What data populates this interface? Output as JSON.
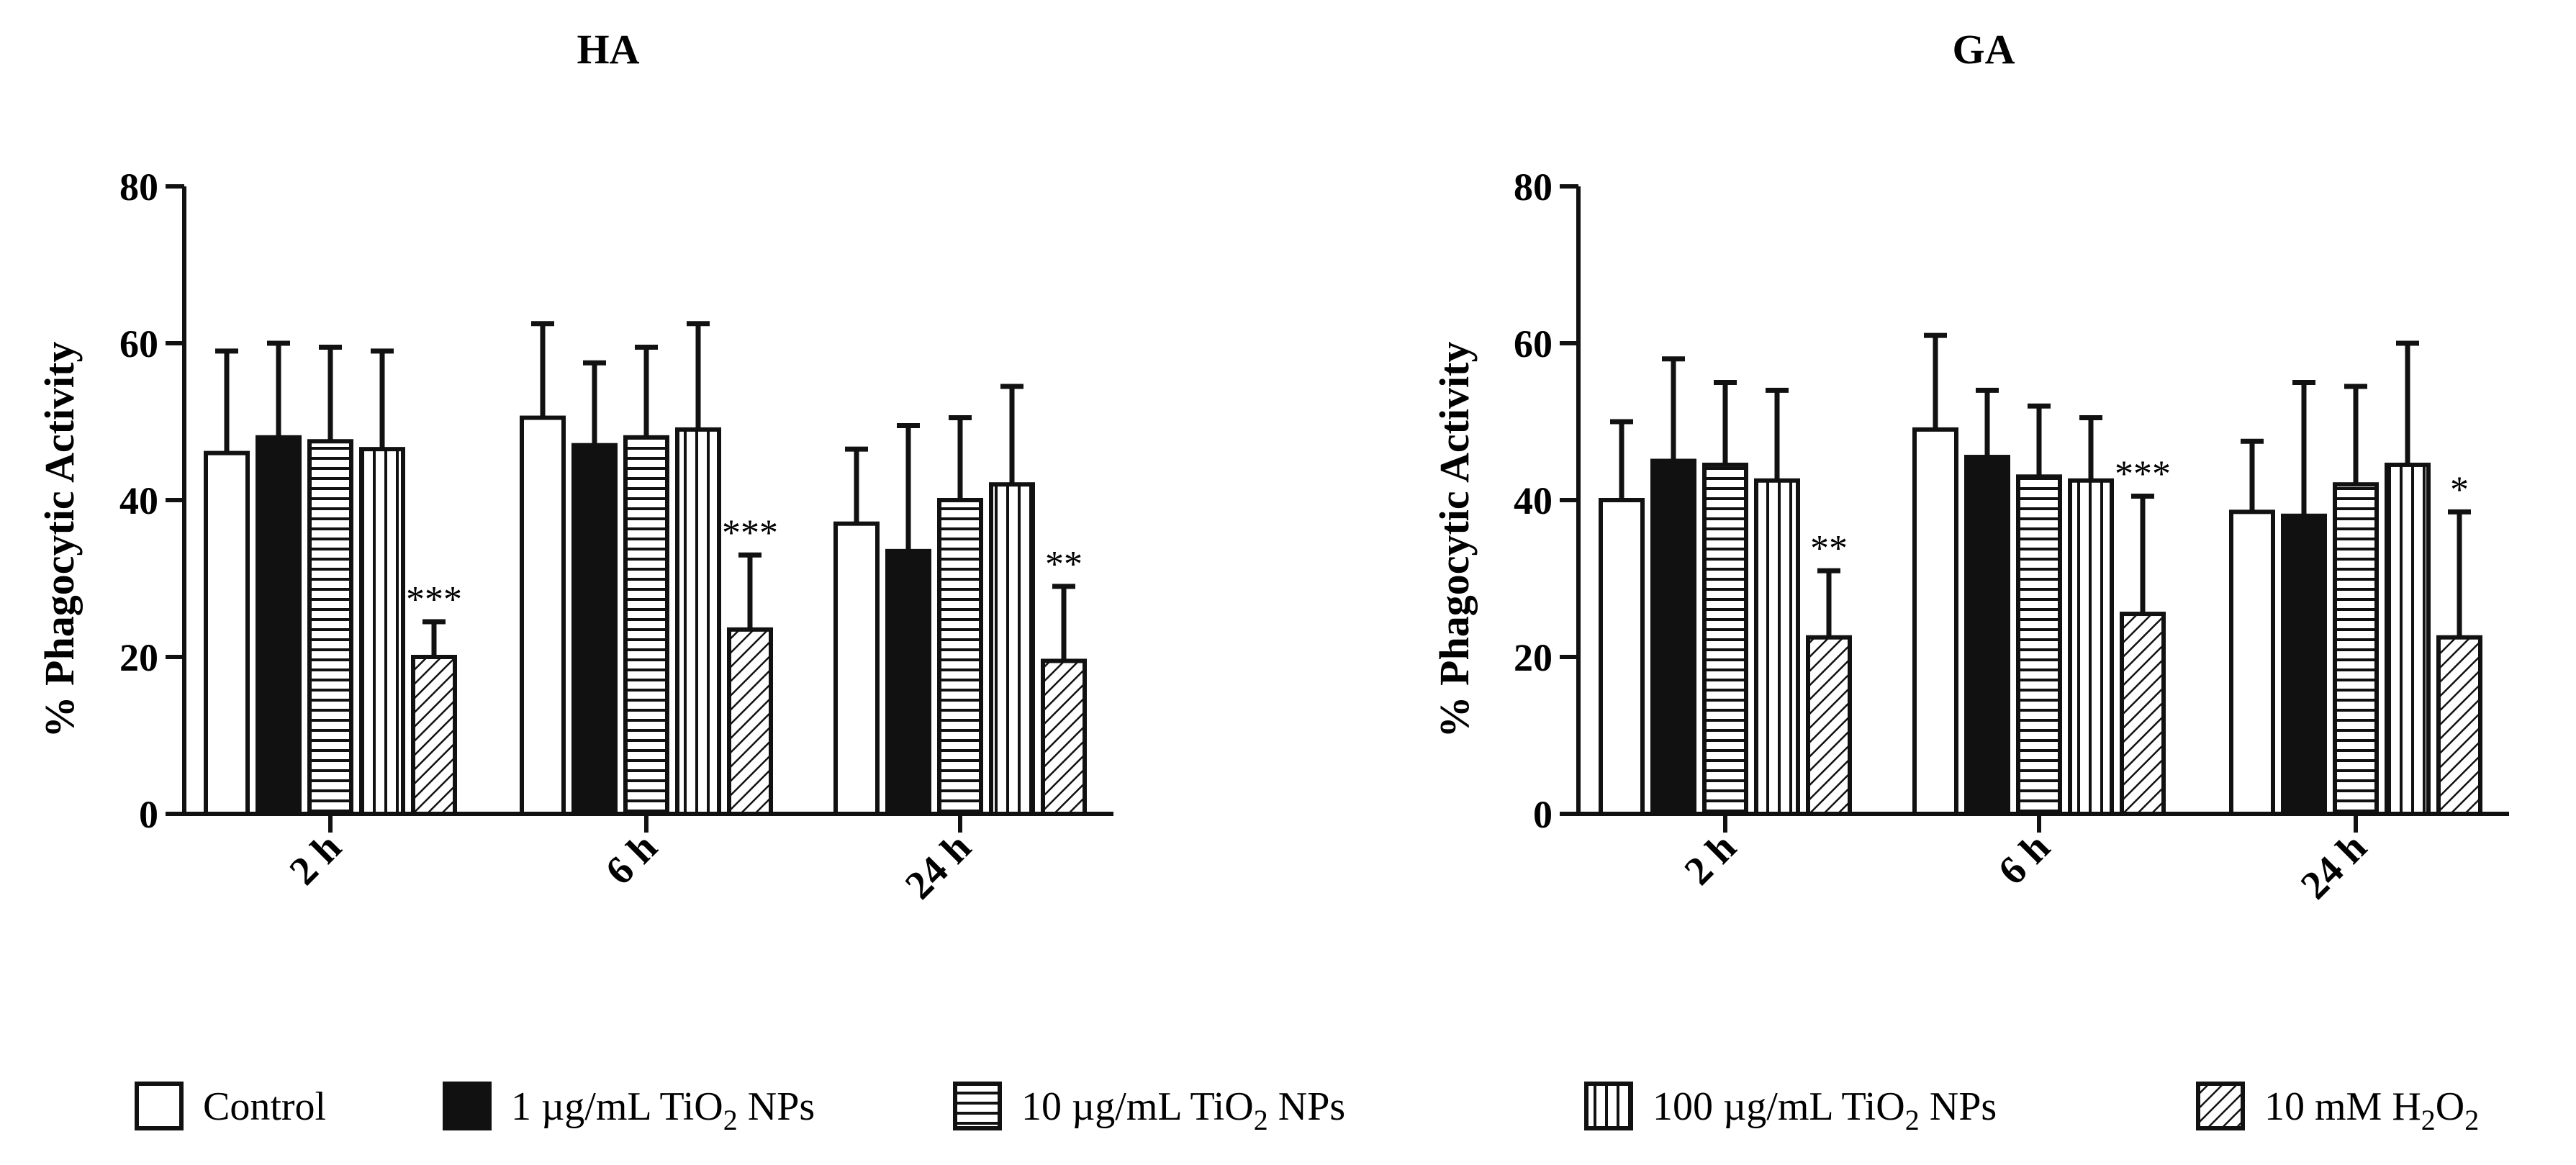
{
  "chart_data": [
    {
      "type": "bar",
      "title": "HA",
      "ylabel": "% Phagocytic Activity",
      "xlabel": "",
      "ylim": [
        0,
        80
      ],
      "yticks": [
        "0",
        "20",
        "40",
        "60",
        "80"
      ],
      "grid": false,
      "categories": [
        "2 h",
        "6 h",
        "24 h"
      ],
      "series": [
        {
          "name": "Control",
          "values": [
            46,
            50.5,
            37
          ],
          "errors": [
            13,
            12,
            9.5
          ]
        },
        {
          "name": "1 µg/mL TiO2 NPs",
          "values": [
            48,
            47,
            33.5
          ],
          "errors": [
            12,
            10.5,
            16
          ]
        },
        {
          "name": "10 µg/mL TiO2 NPs",
          "values": [
            47.5,
            48,
            40
          ],
          "errors": [
            12,
            11.5,
            10.5
          ]
        },
        {
          "name": "100 µg/mL TiO2 NPs",
          "values": [
            46.5,
            49,
            42
          ],
          "errors": [
            12.5,
            13.5,
            12.5
          ]
        },
        {
          "name": "10 mM H2O2",
          "values": [
            20,
            23.5,
            19.5
          ],
          "errors": [
            4.5,
            9.5,
            9.5
          ]
        }
      ],
      "annotations": [
        {
          "category": "2 h",
          "series": "10 mM H2O2",
          "text": "***"
        },
        {
          "category": "6 h",
          "series": "10 mM H2O2",
          "text": "***"
        },
        {
          "category": "24 h",
          "series": "10 mM H2O2",
          "text": "**"
        }
      ]
    },
    {
      "type": "bar",
      "title": "GA",
      "ylabel": "% Phagocytic Activity",
      "xlabel": "",
      "ylim": [
        0,
        80
      ],
      "yticks": [
        "0",
        "20",
        "40",
        "60",
        "80"
      ],
      "grid": false,
      "categories": [
        "2 h",
        "6 h",
        "24 h"
      ],
      "series": [
        {
          "name": "Control",
          "values": [
            40,
            49,
            38.5
          ],
          "errors": [
            10,
            12,
            9
          ]
        },
        {
          "name": "1 µg/mL TiO2 NPs",
          "values": [
            45,
            45.5,
            38
          ],
          "errors": [
            13,
            8.5,
            17
          ]
        },
        {
          "name": "10 µg/mL TiO2 NPs",
          "values": [
            44.5,
            43,
            42
          ],
          "errors": [
            10.5,
            9,
            12.5
          ]
        },
        {
          "name": "100 µg/mL TiO2 NPs",
          "values": [
            42.5,
            42.5,
            44.5
          ],
          "errors": [
            11.5,
            8,
            15.5
          ]
        },
        {
          "name": "10 mM H2O2",
          "values": [
            22.5,
            25.5,
            22.5
          ],
          "errors": [
            8.5,
            15,
            16
          ]
        }
      ],
      "annotations": [
        {
          "category": "2 h",
          "series": "10 mM H2O2",
          "text": "**"
        },
        {
          "category": "6 h",
          "series": "10 mM H2O2",
          "text": "***"
        },
        {
          "category": "24 h",
          "series": "10 mM H2O2",
          "text": "*"
        }
      ]
    }
  ],
  "legend": {
    "placement": "bottom",
    "items": [
      {
        "pattern": "open",
        "label": "Control"
      },
      {
        "pattern": "solid",
        "label": "1 µg/mL TiO",
        "sub": "2",
        "suffix": " NPs"
      },
      {
        "pattern": "horizontal",
        "label": "10 µg/mL TiO",
        "sub": "2",
        "suffix": " NPs"
      },
      {
        "pattern": "vertical",
        "label": "100 µg/mL TiO",
        "sub": "2",
        "suffix": " NPs"
      },
      {
        "pattern": "diagonal",
        "label": "10 mM H",
        "sub": "2",
        "suffix": "O",
        "sub2": "2"
      }
    ]
  }
}
